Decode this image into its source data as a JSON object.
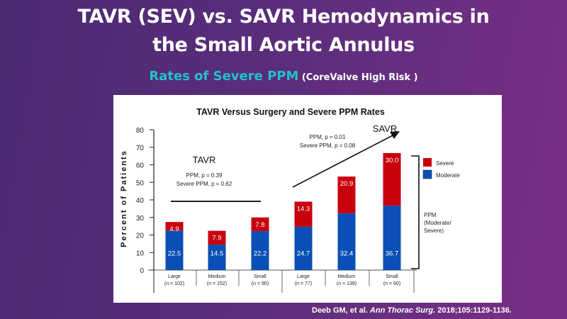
{
  "slide": {
    "title_line1": "TAVR (SEV) vs. SAVR Hemodynamics in",
    "title_line2": "the Small Aortic Annulus",
    "subtitle_main": "Rates of Severe PPM",
    "subtitle_paren": "(CoreValve High Risk )",
    "citation": {
      "authors": "Deeb GM, et al.",
      "journal": "Ann Thorac Surg.",
      "ref": "2018;105:1129-1136."
    }
  },
  "chart_data": {
    "type": "bar",
    "stacked": true,
    "title": "TAVR Versus Surgery and Severe PPM Rates",
    "xlabel": "",
    "ylabel": "Percent of Patients",
    "ylim": [
      0,
      80
    ],
    "yticks": [
      0,
      10,
      20,
      30,
      40,
      50,
      60,
      70,
      80
    ],
    "grid": false,
    "categories": [
      {
        "label": "Large",
        "n": "(n = 102)",
        "group": "TAVR"
      },
      {
        "label": "Medium",
        "n": "(n = 152)",
        "group": "TAVR"
      },
      {
        "label": "Small",
        "n": "(n = 90)",
        "group": "TAVR"
      },
      {
        "label": "Large",
        "n": "(n = 77)",
        "group": "SAVR"
      },
      {
        "label": "Medium",
        "n": "(n = 139)",
        "group": "SAVR"
      },
      {
        "label": "Small",
        "n": "(n = 60)",
        "group": "SAVR"
      }
    ],
    "series": [
      {
        "name": "Moderate",
        "color": "#0a4fb5",
        "values": [
          22.5,
          14.5,
          22.2,
          24.7,
          32.4,
          36.7
        ]
      },
      {
        "name": "Severe",
        "color": "#c8000e",
        "values": [
          4.9,
          7.9,
          7.8,
          14.3,
          20.9,
          30.0
        ]
      }
    ],
    "legend": {
      "position": "right",
      "entries": [
        "Severe",
        "Moderate"
      ]
    },
    "annotations": {
      "tavr": {
        "label": "TAVR",
        "line1": "PPM, p = 0.39",
        "line2": "Severe PPM, p = 0.62"
      },
      "savr": {
        "label": "SAVR",
        "line1": "PPM, p = 0.01",
        "line2": "Severe PPM, p = 0.08"
      },
      "bracket_label": [
        "PPM",
        "(Moderate/",
        "Severe)"
      ]
    }
  }
}
